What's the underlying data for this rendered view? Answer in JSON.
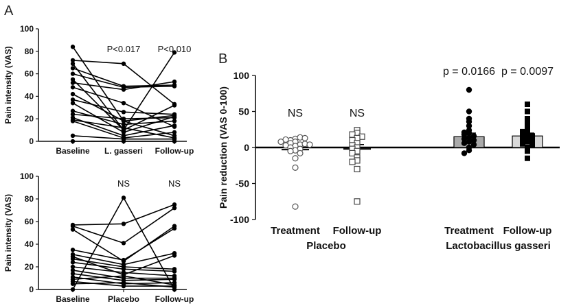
{
  "panel_labels": {
    "a": "A",
    "b": "B"
  },
  "chart_data": [
    {
      "type": "line",
      "panel": "A",
      "ylabel": "Pain intensity (VAS)",
      "ylim": [
        0,
        100
      ],
      "yticks": [
        "0",
        "20",
        "40",
        "60",
        "80",
        "100"
      ],
      "categories": [
        "Baseline",
        "L. gasseri",
        "Follow-up"
      ],
      "annotations": [
        "",
        "P<0.017",
        "P<0.010"
      ],
      "series": [
        {
          "values": [
            84,
            18,
            23
          ]
        },
        {
          "values": [
            72,
            69,
            33
          ]
        },
        {
          "values": [
            69,
            10,
            79
          ]
        },
        {
          "values": [
            65,
            49,
            50
          ]
        },
        {
          "values": [
            60,
            48,
            49
          ]
        },
        {
          "values": [
            55,
            10,
            32
          ]
        },
        {
          "values": [
            52,
            46,
            53
          ]
        },
        {
          "values": [
            48,
            34,
            13
          ]
        },
        {
          "values": [
            42,
            18,
            5
          ]
        },
        {
          "values": [
            37,
            26,
            24
          ]
        },
        {
          "values": [
            34,
            8,
            22
          ]
        },
        {
          "values": [
            27,
            15,
            18
          ]
        },
        {
          "values": [
            24,
            20,
            21
          ]
        },
        {
          "values": [
            21,
            5,
            14
          ]
        },
        {
          "values": [
            19,
            12,
            3
          ]
        },
        {
          "values": [
            18,
            3,
            8
          ]
        },
        {
          "values": [
            5,
            2,
            2
          ]
        },
        {
          "values": [
            0,
            0,
            0
          ]
        }
      ]
    },
    {
      "type": "line",
      "panel": "A",
      "ylabel": "Pain intensity (VAS)",
      "ylim": [
        0,
        100
      ],
      "yticks": [
        "0",
        "20",
        "40",
        "60",
        "80",
        "100"
      ],
      "categories": [
        "Baseline",
        "Placebo",
        "Follow-up"
      ],
      "annotations": [
        "",
        "NS",
        "NS"
      ],
      "series": [
        {
          "values": [
            57,
            58,
            75
          ]
        },
        {
          "values": [
            56,
            41,
            72
          ]
        },
        {
          "values": [
            53,
            25,
            56
          ]
        },
        {
          "values": [
            35,
            26,
            54
          ]
        },
        {
          "values": [
            31,
            22,
            32
          ]
        },
        {
          "values": [
            29,
            13,
            30
          ]
        },
        {
          "values": [
            27,
            20,
            18
          ]
        },
        {
          "values": [
            24,
            18,
            16
          ]
        },
        {
          "values": [
            20,
            15,
            12
          ]
        },
        {
          "values": [
            17,
            10,
            10
          ]
        },
        {
          "values": [
            14,
            8,
            9
          ]
        },
        {
          "values": [
            11,
            5,
            6
          ]
        },
        {
          "values": [
            9,
            12,
            4
          ]
        },
        {
          "values": [
            7,
            3,
            3
          ]
        },
        {
          "values": [
            5,
            6,
            2
          ]
        },
        {
          "values": [
            0,
            81,
            0
          ]
        }
      ]
    },
    {
      "type": "scatter",
      "panel": "B",
      "ylabel": "Pain reduction (VAS 0-100)",
      "ylim": [
        -100,
        100
      ],
      "yticks": [
        "100",
        "50",
        "0",
        "-50",
        "-100"
      ],
      "categories": [
        "Treatment",
        "Follow-up",
        "Treatment",
        "Follow-up"
      ],
      "groups": [
        "Placebo",
        "Lactobacillus gasseri"
      ],
      "annotations": [
        "NS",
        "NS",
        "p = 0.0166",
        "p = 0.0097"
      ],
      "series": [
        {
          "marker": "open-circle",
          "mean": -3,
          "sem": 5,
          "values": [
            12,
            10,
            14,
            8,
            6,
            11,
            13,
            4,
            3,
            5,
            2,
            0,
            -2,
            -4,
            -5,
            -8,
            8,
            4,
            -15,
            -28,
            -82
          ]
        },
        {
          "marker": "open-square",
          "mean": -2,
          "sem": 6,
          "values": [
            24,
            20,
            18,
            15,
            13,
            10,
            6,
            3,
            0,
            -2,
            -5,
            -8,
            -14,
            -18,
            -20,
            -30,
            -75
          ]
        },
        {
          "marker": "filled-circle",
          "bar": "gray",
          "mean": 15,
          "sem": 5,
          "values": [
            80,
            50,
            40,
            36,
            30,
            24,
            21,
            20,
            18,
            16,
            14,
            12,
            10,
            8,
            6,
            4,
            0,
            -4,
            -8
          ]
        },
        {
          "marker": "filled-square",
          "bar": "light-gray",
          "mean": 16,
          "sem": 4,
          "values": [
            60,
            50,
            40,
            34,
            30,
            26,
            22,
            20,
            18,
            16,
            14,
            12,
            10,
            8,
            5,
            3,
            0,
            -5,
            -15
          ]
        }
      ]
    }
  ]
}
